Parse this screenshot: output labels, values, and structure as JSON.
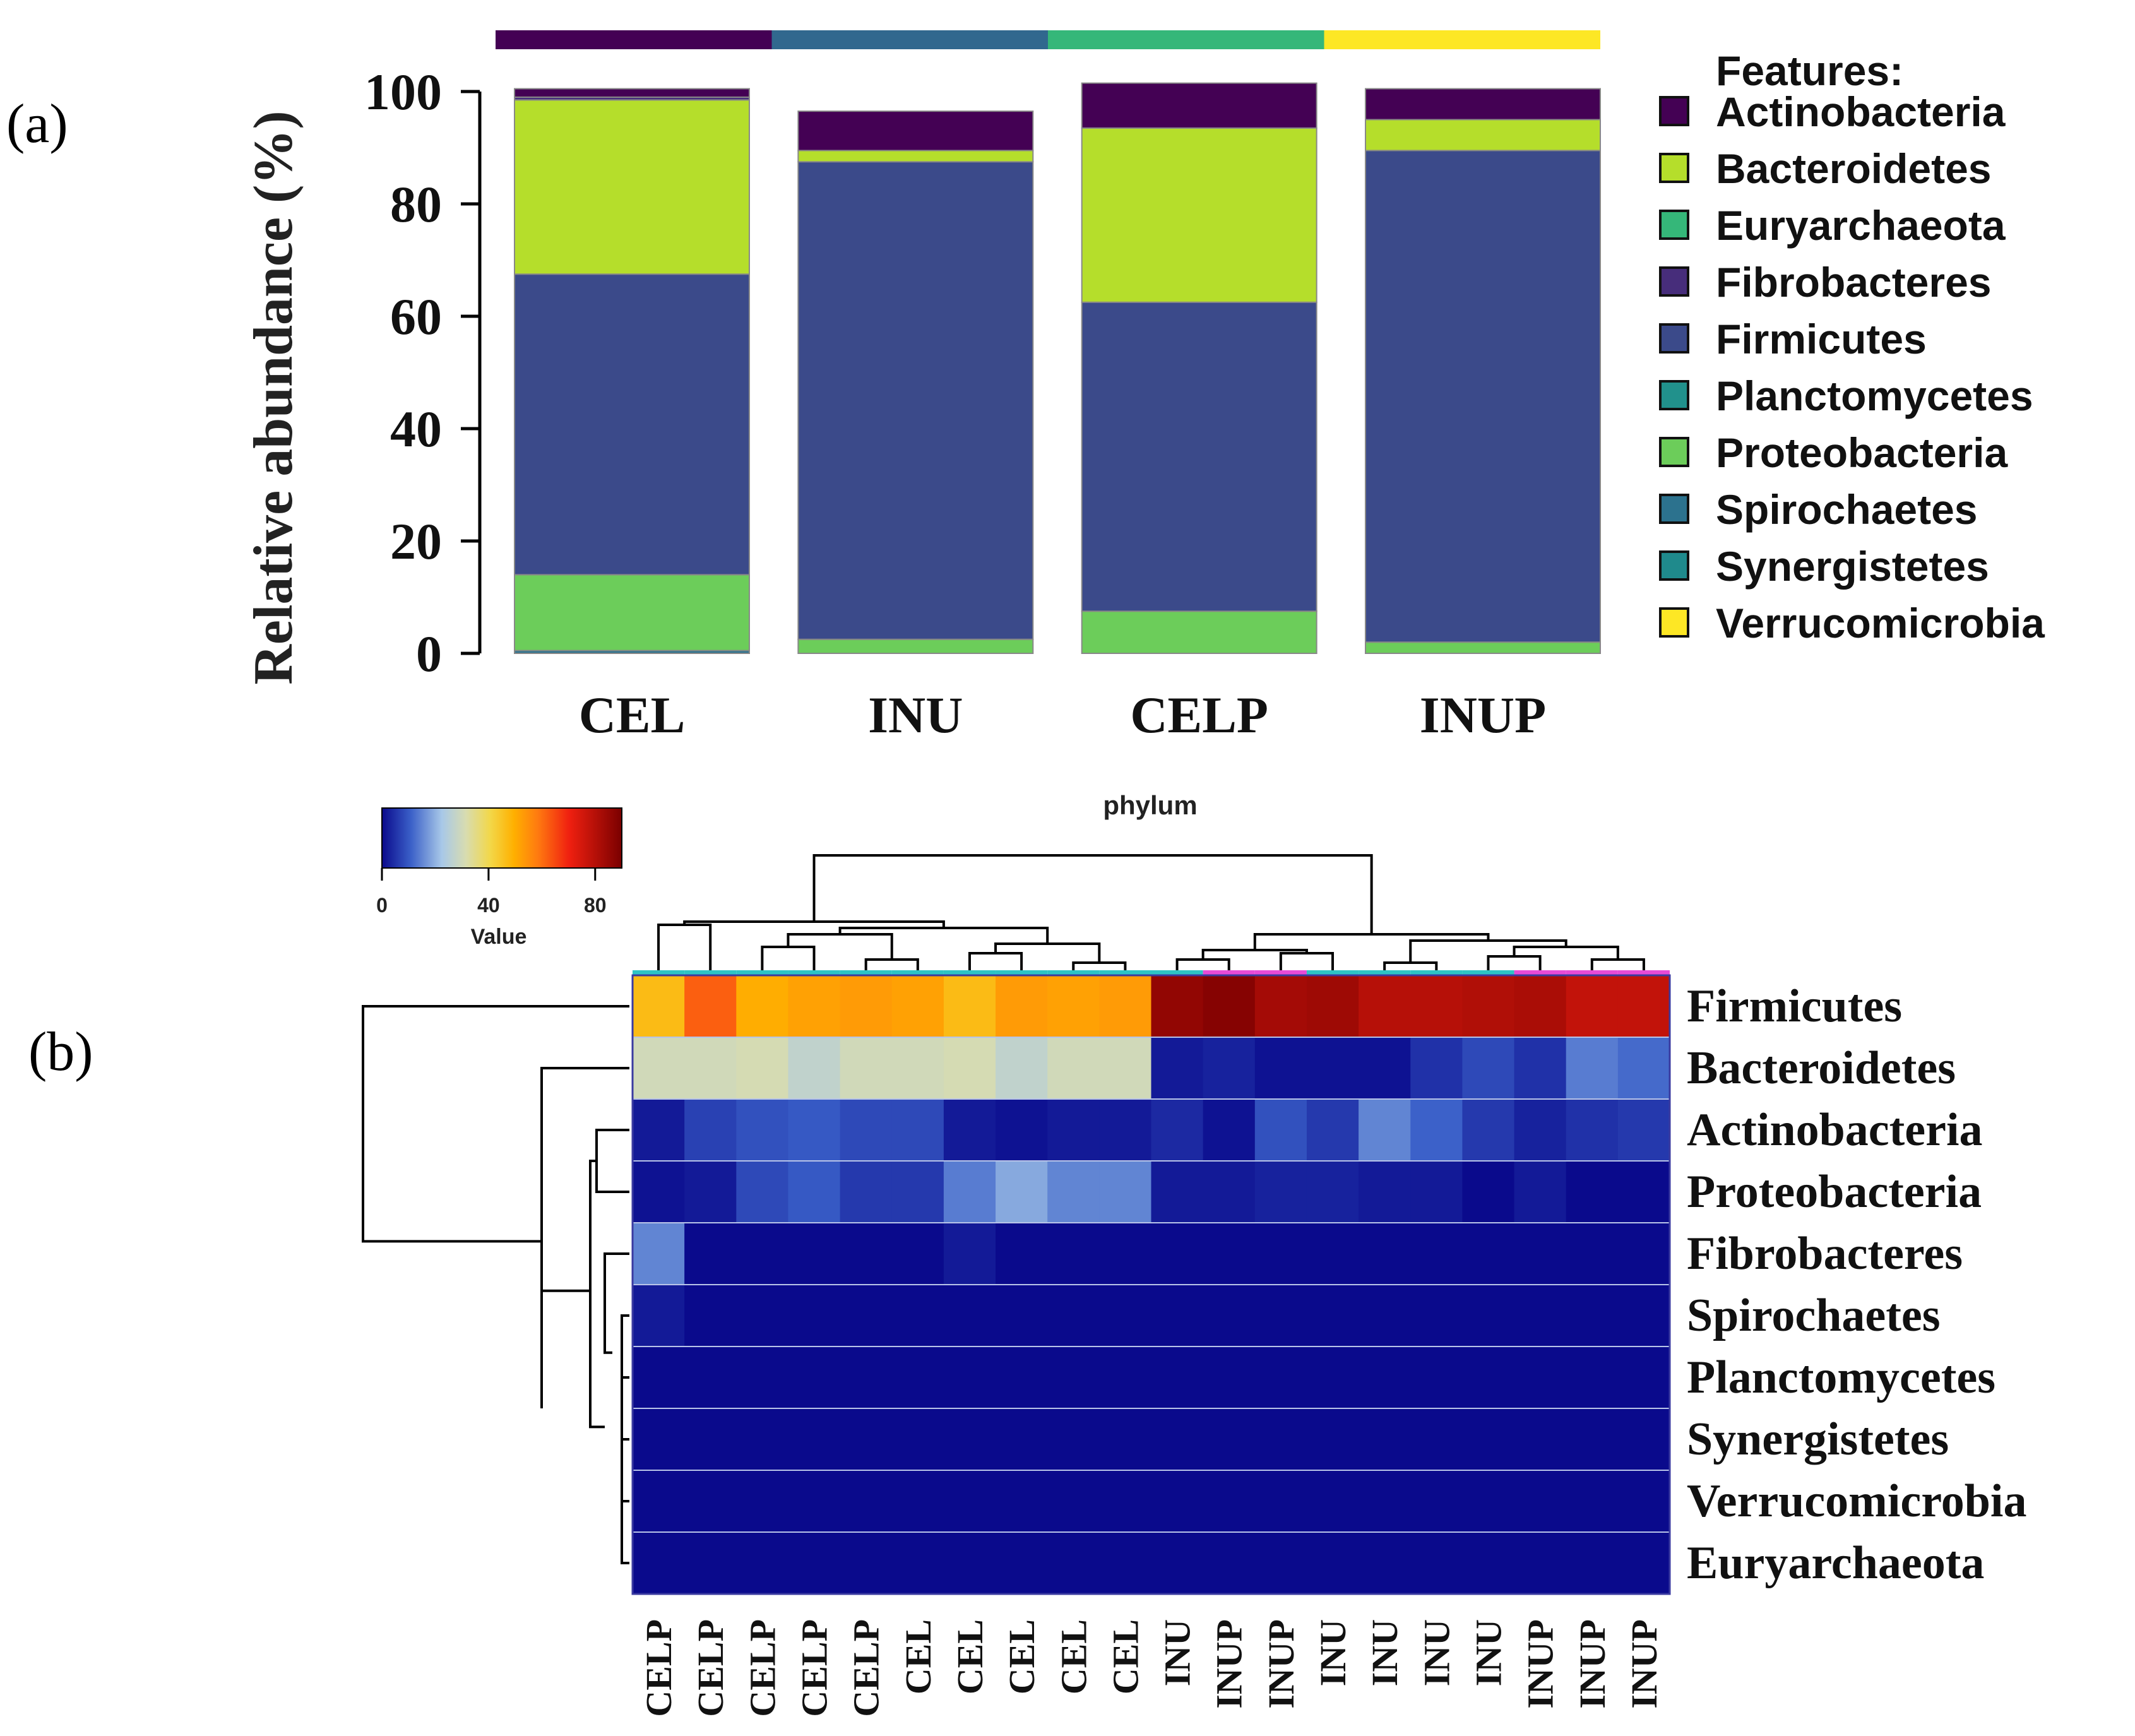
{
  "panel_labels": {
    "a": "(a)",
    "b": "(b)"
  },
  "chart_data": [
    {
      "type": "bar",
      "stacked": true,
      "panel": "a",
      "ylabel": "Relative abundance (%)",
      "ylim": [
        0,
        100
      ],
      "yticks": [
        0,
        20,
        40,
        60,
        80,
        100
      ],
      "categories": [
        "CEL",
        "INU",
        "CELP",
        "INUP"
      ],
      "group_bar_colors": [
        "#440154",
        "#31688e",
        "#35b779",
        "#fde725"
      ],
      "legend_title": "Features:",
      "legend": [
        {
          "name": "Actinobacteria",
          "color": "#440154"
        },
        {
          "name": "Bacteroidetes",
          "color": "#b5de2b"
        },
        {
          "name": "Euryarchaeota",
          "color": "#35b779"
        },
        {
          "name": "Fibrobacteres",
          "color": "#472d7b"
        },
        {
          "name": "Firmicutes",
          "color": "#3b4a8a"
        },
        {
          "name": "Planctomycetes",
          "color": "#21918c"
        },
        {
          "name": "Proteobacteria",
          "color": "#6ccd5a"
        },
        {
          "name": "Spirochaetes",
          "color": "#2c728e"
        },
        {
          "name": "Synergistetes",
          "color": "#1f8a8c"
        },
        {
          "name": "Verrucomicrobia",
          "color": "#fde725"
        }
      ],
      "series": [
        {
          "name": "Spirochaetes",
          "color": "#2c728e",
          "values": [
            0.5,
            0,
            0,
            0
          ]
        },
        {
          "name": "Proteobacteria",
          "color": "#6ccd5a",
          "values": [
            13.5,
            2.5,
            7.5,
            2
          ]
        },
        {
          "name": "Firmicutes",
          "color": "#3b4a8a",
          "values": [
            53.5,
            85,
            55,
            87.5
          ]
        },
        {
          "name": "Bacteroidetes",
          "color": "#b5de2b",
          "values": [
            31,
            2,
            31,
            5.5
          ]
        },
        {
          "name": "Fibrobacteres",
          "color": "#472d7b",
          "values": [
            0.5,
            0,
            0,
            0
          ]
        },
        {
          "name": "Actinobacteria",
          "color": "#440154",
          "values": [
            1.5,
            7,
            8,
            5.5
          ]
        }
      ]
    },
    {
      "type": "heatmap",
      "panel": "b",
      "title": "phylum",
      "colorbar": {
        "label": "Value",
        "ticks": [
          0,
          40,
          80
        ],
        "range": [
          0,
          90
        ]
      },
      "columns": [
        "CELP",
        "CELP",
        "CELP",
        "CELP",
        "CELP",
        "CEL",
        "CEL",
        "CEL",
        "CEL",
        "CEL",
        "INU",
        "INUP",
        "INUP",
        "INU",
        "INU",
        "INU",
        "INU",
        "INUP",
        "INUP",
        "INUP"
      ],
      "column_group_colors": [
        "#2ec4c4",
        "#2ec4c4",
        "#2ec4c4",
        "#2ec4c4",
        "#2ec4c4",
        "#2ec4c4",
        "#2ec4c4",
        "#2ec4c4",
        "#2ec4c4",
        "#2ec4c4",
        "#2ec4c4",
        "#e84bd6",
        "#e84bd6",
        "#2ec4c4",
        "#2ec4c4",
        "#2ec4c4",
        "#2ec4c4",
        "#e84bd6",
        "#e84bd6",
        "#e84bd6"
      ],
      "rows": [
        "Firmicutes",
        "Bacteroidetes",
        "Actinobacteria",
        "Proteobacteria",
        "Fibrobacteres",
        "Spirochaetes",
        "Planctomycetes",
        "Synergistetes",
        "Verrucomicrobia",
        "Euryarchaeota"
      ],
      "values": [
        [
          47,
          62,
          50,
          52,
          53,
          52,
          47,
          53,
          52,
          53,
          86,
          88,
          83,
          84,
          80,
          80,
          81,
          82,
          78,
          78
        ],
        [
          30,
          30,
          31,
          27,
          30,
          30,
          31,
          27,
          30,
          30,
          2,
          3,
          1,
          1,
          1,
          5,
          8,
          5,
          14,
          12
        ],
        [
          2,
          7,
          9,
          10,
          8,
          8,
          2,
          1,
          2,
          2,
          4,
          1,
          9,
          6,
          15,
          11,
          6,
          3,
          5,
          6
        ],
        [
          1,
          2,
          8,
          10,
          6,
          6,
          14,
          19,
          15,
          15,
          2,
          2,
          3,
          3,
          2,
          2,
          0,
          2,
          0,
          0
        ],
        [
          15,
          0,
          0,
          0,
          0,
          0,
          2,
          0,
          0,
          0,
          0,
          0,
          0,
          0,
          0,
          0,
          0,
          0,
          0,
          0
        ],
        [
          2,
          0,
          0,
          0,
          0,
          0,
          0,
          0,
          0,
          0,
          0,
          0,
          0,
          0,
          0,
          0,
          0,
          0,
          0,
          0
        ],
        [
          0,
          0,
          0,
          0,
          0,
          0,
          0,
          0,
          0,
          0,
          0,
          0,
          0,
          0,
          0,
          0,
          0,
          0,
          0,
          0
        ],
        [
          0,
          0,
          0,
          0,
          0,
          0,
          0,
          0,
          0,
          0,
          0,
          0,
          0,
          0,
          0,
          0,
          0,
          0,
          0,
          0
        ],
        [
          0,
          0,
          0,
          0,
          0,
          0,
          0,
          0,
          0,
          0,
          0,
          0,
          0,
          0,
          0,
          0,
          0,
          0,
          0,
          0
        ],
        [
          0,
          0,
          0,
          0,
          0,
          0,
          0,
          0,
          0,
          0,
          0,
          0,
          0,
          0,
          0,
          0,
          0,
          0,
          0,
          0
        ]
      ]
    }
  ]
}
